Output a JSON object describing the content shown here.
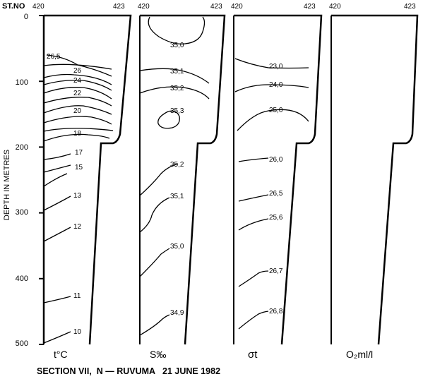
{
  "header": {
    "station_label": "ST.NO",
    "station_start": "420",
    "station_end": "423"
  },
  "axis": {
    "label": "DEPTH IN METRES",
    "ticks": [
      "0",
      "100",
      "200",
      "300",
      "400",
      "500"
    ]
  },
  "panels": [
    {
      "key": "temperature",
      "label": "t°C",
      "isolines": [
        {
          "label": "26,5",
          "depth": 72
        },
        {
          "label": "26",
          "depth": 90
        },
        {
          "label": "24",
          "depth": 103
        },
        {
          "label": "22",
          "depth": 117
        },
        {
          "label": "20",
          "depth": 143
        },
        {
          "label": "18",
          "depth": 180
        },
        {
          "label": "17",
          "depth": 207
        },
        {
          "label": "15",
          "depth": 230
        },
        {
          "label": "13",
          "depth": 271
        },
        {
          "label": "12",
          "depth": 322
        },
        {
          "label": "11",
          "depth": 425
        },
        {
          "label": "10",
          "depth": 483
        }
      ]
    },
    {
      "key": "salinity",
      "label": "S‰",
      "isolines": [
        {
          "label": "35,0",
          "depth": 40
        },
        {
          "label": "35,1",
          "depth": 92
        },
        {
          "label": "35,2",
          "depth": 110
        },
        {
          "label": "35,3",
          "depth": 150
        },
        {
          "label": "35,2",
          "depth": 230
        },
        {
          "label": "35,1",
          "depth": 275
        },
        {
          "label": "35,0",
          "depth": 353
        },
        {
          "label": "34,9",
          "depth": 455
        }
      ]
    },
    {
      "key": "sigma",
      "label": "σt",
      "isolines": [
        {
          "label": "23,0",
          "depth": 77
        },
        {
          "label": "24,0",
          "depth": 104
        },
        {
          "label": "25,0",
          "depth": 142
        },
        {
          "label": "26,0",
          "depth": 219
        },
        {
          "label": "26,5",
          "depth": 270
        },
        {
          "label": "25,6",
          "depth": 309
        },
        {
          "label": "26,7",
          "depth": 392
        },
        {
          "label": "26,8",
          "depth": 452
        }
      ]
    },
    {
      "key": "oxygen",
      "label": "O₂ml/l",
      "isolines": []
    }
  ],
  "caption": "SECTION VII,  N — RUVUMA   21 JUNE 1982"
}
